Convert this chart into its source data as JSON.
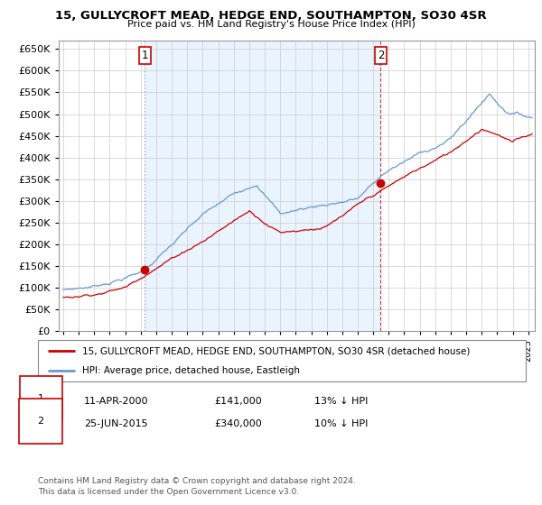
{
  "title": "15, GULLYCROFT MEAD, HEDGE END, SOUTHAMPTON, SO30 4SR",
  "subtitle": "Price paid vs. HM Land Registry's House Price Index (HPI)",
  "ylim": [
    0,
    670000
  ],
  "yticks": [
    0,
    50000,
    100000,
    150000,
    200000,
    250000,
    300000,
    350000,
    400000,
    450000,
    500000,
    550000,
    600000,
    650000
  ],
  "xlim_start": 1994.7,
  "xlim_end": 2025.4,
  "legend_line1": "15, GULLYCROFT MEAD, HEDGE END, SOUTHAMPTON, SO30 4SR (detached house)",
  "legend_line2": "HPI: Average price, detached house, Eastleigh",
  "sale1_date": "11-APR-2000",
  "sale1_price": "£141,000",
  "sale1_rel": "13% ↓ HPI",
  "sale2_date": "25-JUN-2015",
  "sale2_price": "£340,000",
  "sale2_rel": "10% ↓ HPI",
  "footer": "Contains HM Land Registry data © Crown copyright and database right 2024.\nThis data is licensed under the Open Government Licence v3.0.",
  "line_color_red": "#cc0000",
  "line_color_blue": "#6699cc",
  "bg_fill_color": "#ddeeff",
  "grid_color": "#cccccc",
  "sale1_year": 2000.27,
  "sale1_price_val": 141000,
  "sale2_year": 2015.48,
  "sale2_price_val": 340000
}
